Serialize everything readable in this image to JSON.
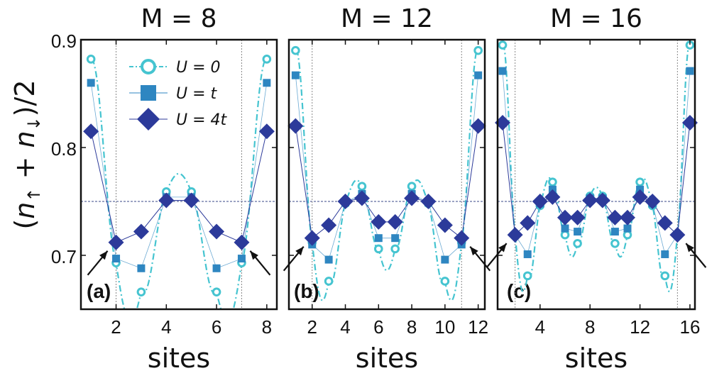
{
  "chart_data": {
    "type": "line",
    "ylabel": {
      "open": "(",
      "n": "n",
      "up": "↑",
      "plus": " + ",
      "n2": "n",
      "down": "↓",
      "close": ")/2"
    },
    "xlabel": "sites",
    "ylim": [
      0.65,
      0.9
    ],
    "yticks": [
      0.7,
      0.8,
      0.9
    ],
    "yticklabels": [
      "0.7",
      "0.8",
      "0.9"
    ],
    "half_filling_line": 0.75,
    "legend": [
      {
        "label": "U = 0",
        "marker": "open-circle",
        "color": "#45c4d0"
      },
      {
        "label": "U = t",
        "marker": "square",
        "color": "#2e86c1"
      },
      {
        "label": "U = 4t",
        "marker": "diamond",
        "color": "#2c3a9a"
      }
    ],
    "panels": [
      {
        "title": "M = 8",
        "letter": "(a)",
        "M": 8,
        "xlim": [
          0.6,
          8.4
        ],
        "xticks": [
          2,
          4,
          6,
          8
        ],
        "xticklabels": [
          "2",
          "4",
          "6",
          "8"
        ],
        "boundary_lines": [
          2,
          7
        ],
        "arrows": [
          "left",
          "right"
        ],
        "series": [
          {
            "name": "U = 0",
            "values": [
              0.882,
              0.693,
              0.666,
              0.759,
              0.759,
              0.666,
              0.693,
              0.882
            ]
          },
          {
            "name": "U = t",
            "values": [
              0.86,
              0.697,
              0.688,
              0.754,
              0.754,
              0.688,
              0.697,
              0.86
            ]
          },
          {
            "name": "U = 4t",
            "values": [
              0.815,
              0.712,
              0.722,
              0.751,
              0.751,
              0.722,
              0.712,
              0.815
            ]
          }
        ]
      },
      {
        "title": "M = 12",
        "letter": "(b)",
        "M": 12,
        "xlim": [
          0.6,
          12.4
        ],
        "xticks": [
          2,
          4,
          6,
          8,
          10,
          12
        ],
        "xticklabels": [
          "2",
          "4",
          "6",
          "8",
          "10",
          "12"
        ],
        "boundary_lines": [
          2,
          11
        ],
        "arrows": [
          "left",
          "right"
        ],
        "series": [
          {
            "name": "U = 0",
            "values": [
              0.89,
              0.712,
              0.676,
              0.748,
              0.764,
              0.706,
              0.706,
              0.764,
              0.748,
              0.676,
              0.712,
              0.89
            ]
          },
          {
            "name": "U = t",
            "values": [
              0.867,
              0.71,
              0.696,
              0.749,
              0.757,
              0.716,
              0.716,
              0.757,
              0.749,
              0.696,
              0.71,
              0.867
            ]
          },
          {
            "name": "U = 4t",
            "values": [
              0.82,
              0.716,
              0.728,
              0.75,
              0.753,
              0.731,
              0.731,
              0.753,
              0.75,
              0.728,
              0.716,
              0.82
            ]
          }
        ]
      },
      {
        "title": "M = 16",
        "letter": "(c)",
        "M": 16,
        "xlim": [
          0.6,
          16.4
        ],
        "xticks": [
          4,
          8,
          12,
          16
        ],
        "xticklabels": [
          "4",
          "8",
          "12",
          "16"
        ],
        "boundary_lines": [
          2,
          15
        ],
        "arrows": [
          "left",
          "right"
        ],
        "series": [
          {
            "name": "U = 0",
            "values": [
              0.895,
              0.72,
              0.681,
              0.746,
              0.768,
              0.719,
              0.711,
              0.755,
              0.755,
              0.711,
              0.719,
              0.768,
              0.746,
              0.681,
              0.72,
              0.895
            ]
          },
          {
            "name": "U = t",
            "values": [
              0.871,
              0.719,
              0.701,
              0.748,
              0.761,
              0.725,
              0.722,
              0.753,
              0.753,
              0.722,
              0.725,
              0.761,
              0.748,
              0.701,
              0.719,
              0.871
            ]
          },
          {
            "name": "U = 4t",
            "values": [
              0.823,
              0.719,
              0.73,
              0.75,
              0.754,
              0.735,
              0.735,
              0.751,
              0.751,
              0.735,
              0.735,
              0.754,
              0.75,
              0.73,
              0.719,
              0.823
            ]
          }
        ]
      }
    ]
  }
}
